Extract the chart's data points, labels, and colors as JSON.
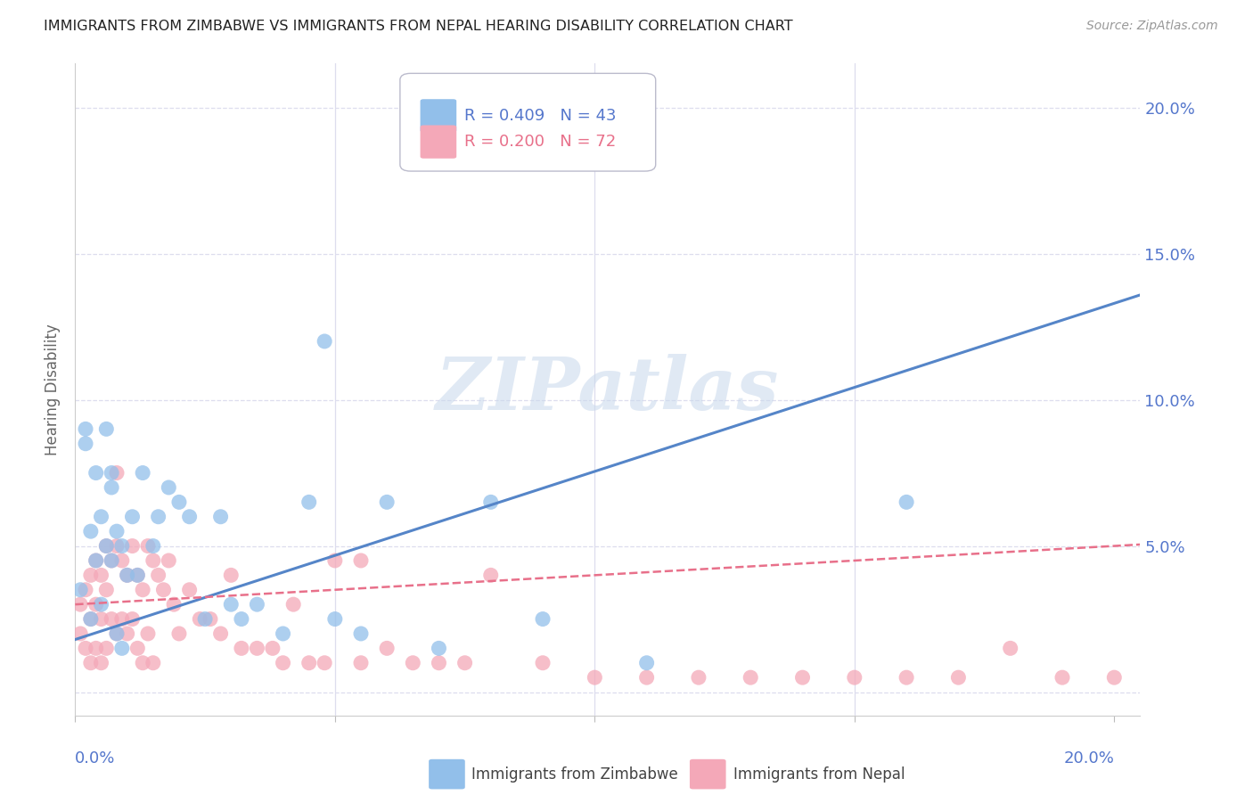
{
  "title": "IMMIGRANTS FROM ZIMBABWE VS IMMIGRANTS FROM NEPAL HEARING DISABILITY CORRELATION CHART",
  "source": "Source: ZipAtlas.com",
  "ylabel": "Hearing Disability",
  "y_tick_labels": [
    "",
    "5.0%",
    "10.0%",
    "15.0%",
    "20.0%"
  ],
  "xlim": [
    0.0,
    0.205
  ],
  "ylim": [
    -0.008,
    0.215
  ],
  "x_ticks": [
    0.0,
    0.05,
    0.1,
    0.15,
    0.2
  ],
  "y_ticks": [
    0.0,
    0.05,
    0.1,
    0.15,
    0.2
  ],
  "zimbabwe_R": 0.409,
  "zimbabwe_N": 43,
  "nepal_R": 0.2,
  "nepal_N": 72,
  "blue_color": "#92BFEA",
  "pink_color": "#F4A8B8",
  "blue_line_color": "#5585C8",
  "pink_line_color": "#E8708A",
  "grid_color": "#DDDDEE",
  "axis_label_color": "#5577CC",
  "watermark_color": "#C8D8EC",
  "zimbabwe_x": [
    0.001,
    0.002,
    0.002,
    0.003,
    0.003,
    0.004,
    0.004,
    0.005,
    0.005,
    0.006,
    0.006,
    0.007,
    0.007,
    0.007,
    0.008,
    0.008,
    0.009,
    0.009,
    0.01,
    0.011,
    0.012,
    0.013,
    0.015,
    0.016,
    0.018,
    0.02,
    0.022,
    0.025,
    0.028,
    0.03,
    0.032,
    0.035,
    0.04,
    0.045,
    0.05,
    0.055,
    0.06,
    0.07,
    0.08,
    0.09,
    0.11,
    0.16,
    0.048
  ],
  "zimbabwe_y": [
    0.035,
    0.09,
    0.085,
    0.055,
    0.025,
    0.075,
    0.045,
    0.06,
    0.03,
    0.09,
    0.05,
    0.075,
    0.07,
    0.045,
    0.055,
    0.02,
    0.05,
    0.015,
    0.04,
    0.06,
    0.04,
    0.075,
    0.05,
    0.06,
    0.07,
    0.065,
    0.06,
    0.025,
    0.06,
    0.03,
    0.025,
    0.03,
    0.02,
    0.065,
    0.025,
    0.02,
    0.065,
    0.015,
    0.065,
    0.025,
    0.01,
    0.065,
    0.12
  ],
  "nepal_x": [
    0.001,
    0.001,
    0.002,
    0.002,
    0.003,
    0.003,
    0.003,
    0.004,
    0.004,
    0.004,
    0.005,
    0.005,
    0.005,
    0.006,
    0.006,
    0.006,
    0.007,
    0.007,
    0.008,
    0.008,
    0.008,
    0.009,
    0.009,
    0.01,
    0.01,
    0.011,
    0.011,
    0.012,
    0.012,
    0.013,
    0.013,
    0.014,
    0.014,
    0.015,
    0.015,
    0.016,
    0.017,
    0.018,
    0.019,
    0.02,
    0.022,
    0.024,
    0.026,
    0.028,
    0.03,
    0.032,
    0.035,
    0.038,
    0.04,
    0.042,
    0.045,
    0.05,
    0.055,
    0.06,
    0.065,
    0.07,
    0.075,
    0.08,
    0.09,
    0.1,
    0.11,
    0.12,
    0.13,
    0.14,
    0.15,
    0.16,
    0.17,
    0.18,
    0.19,
    0.2,
    0.048,
    0.055
  ],
  "nepal_y": [
    0.03,
    0.02,
    0.035,
    0.015,
    0.04,
    0.025,
    0.01,
    0.045,
    0.03,
    0.015,
    0.04,
    0.025,
    0.01,
    0.05,
    0.035,
    0.015,
    0.045,
    0.025,
    0.075,
    0.05,
    0.02,
    0.045,
    0.025,
    0.04,
    0.02,
    0.05,
    0.025,
    0.04,
    0.015,
    0.035,
    0.01,
    0.05,
    0.02,
    0.045,
    0.01,
    0.04,
    0.035,
    0.045,
    0.03,
    0.02,
    0.035,
    0.025,
    0.025,
    0.02,
    0.04,
    0.015,
    0.015,
    0.015,
    0.01,
    0.03,
    0.01,
    0.045,
    0.045,
    0.015,
    0.01,
    0.01,
    0.01,
    0.04,
    0.01,
    0.005,
    0.005,
    0.005,
    0.005,
    0.005,
    0.005,
    0.005,
    0.005,
    0.015,
    0.005,
    0.005,
    0.01,
    0.01
  ]
}
